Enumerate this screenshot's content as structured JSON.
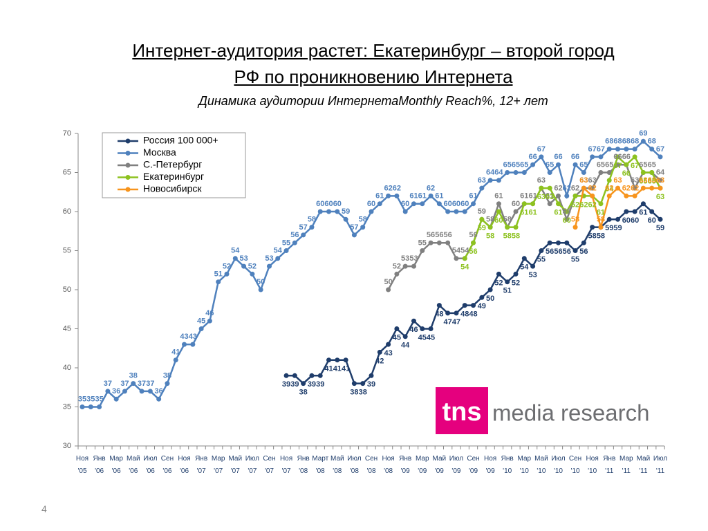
{
  "slide": {
    "title": [
      "Интернет-аудитория растет: Екатеринбург – второй город",
      "РФ по проникновению Интернета"
    ],
    "subtitle": "Динамика аудитории ИнтернетаMonthly Reach%, 12+ лет",
    "logo": {
      "brand": "tns",
      "text": "media research"
    },
    "page_number": "4"
  },
  "chart_data": {
    "type": "line",
    "categories": [
      "Ноя '05",
      null,
      "Янв '06",
      null,
      "Мар '06",
      null,
      "Май '06",
      null,
      "Июл '06",
      null,
      "Сен '06",
      null,
      "Ноя '06",
      null,
      "Янв '07",
      null,
      "Мар '07",
      null,
      "Май '07",
      null,
      "Июл '07",
      null,
      "Сен '07",
      null,
      "Ноя '07",
      null,
      "Янв '08",
      null,
      "Март '08",
      null,
      "Май '08",
      null,
      "Июл '08",
      null,
      "Сен '08",
      null,
      "Ноя '08",
      null,
      "Янв '09",
      null,
      "Мар '09",
      null,
      "Май '09",
      null,
      "Июл '09",
      null,
      "Сен '09",
      null,
      "Ноя '09",
      null,
      "Янв '10",
      null,
      "Мар '10",
      null,
      "Май '10",
      null,
      "Июл '10",
      null,
      "Сен '10",
      null,
      "Ноя '10",
      null,
      "Янв '11",
      null,
      "Мар '11",
      null,
      "Май '11",
      null,
      "Июл '11"
    ],
    "series": [
      {
        "name": "Россия 100 000+",
        "color": "#1f3d6b",
        "values": [
          null,
          null,
          null,
          null,
          null,
          null,
          null,
          null,
          null,
          null,
          null,
          null,
          null,
          null,
          null,
          null,
          null,
          null,
          null,
          null,
          null,
          null,
          null,
          null,
          39,
          39,
          38,
          39,
          39,
          41,
          41,
          41,
          38,
          38,
          39,
          42,
          43,
          45,
          44,
          46,
          45,
          45,
          48,
          47,
          47,
          48,
          48,
          49,
          50,
          52,
          51,
          52,
          54,
          53,
          55,
          56,
          56,
          56,
          55,
          56,
          58,
          58,
          59,
          59,
          60,
          60,
          61,
          60,
          59
        ]
      },
      {
        "name": "Москва",
        "color": "#4f81bd",
        "values": [
          35,
          35,
          35,
          37,
          36,
          37,
          38,
          37,
          37,
          36,
          38,
          41,
          43,
          43,
          45,
          46,
          51,
          52,
          54,
          53,
          52,
          50,
          53,
          54,
          55,
          56,
          57,
          58,
          60,
          60,
          60,
          59,
          57,
          58,
          60,
          61,
          62,
          62,
          60,
          61,
          61,
          62,
          61,
          60,
          60,
          60,
          61,
          63,
          64,
          64,
          65,
          65,
          65,
          66,
          67,
          65,
          66,
          62,
          66,
          65,
          67,
          67,
          68,
          68,
          68,
          68,
          69,
          68,
          67
        ]
      },
      {
        "name": "С.-Петербург",
        "color": "#808080",
        "values": [
          null,
          null,
          null,
          null,
          null,
          null,
          null,
          null,
          null,
          null,
          null,
          null,
          null,
          null,
          null,
          null,
          null,
          null,
          null,
          null,
          null,
          null,
          null,
          null,
          null,
          null,
          null,
          null,
          null,
          null,
          null,
          null,
          null,
          null,
          null,
          null,
          50,
          52,
          53,
          53,
          55,
          56,
          56,
          56,
          54,
          54,
          56,
          59,
          58,
          61,
          58,
          60,
          61,
          61,
          63,
          61,
          62,
          59,
          62,
          63,
          63,
          65,
          65,
          66,
          66,
          63,
          65,
          65,
          64
        ]
      },
      {
        "name": "Екатеринбург",
        "color": "#8dc21f",
        "values": [
          null,
          null,
          null,
          null,
          null,
          null,
          null,
          null,
          null,
          null,
          null,
          null,
          null,
          null,
          null,
          null,
          null,
          null,
          null,
          null,
          null,
          null,
          null,
          null,
          null,
          null,
          null,
          null,
          null,
          null,
          null,
          null,
          null,
          null,
          null,
          null,
          null,
          null,
          null,
          null,
          null,
          null,
          null,
          null,
          null,
          54,
          56,
          59,
          58,
          60,
          58,
          58,
          61,
          61,
          63,
          63,
          61,
          60,
          62,
          62,
          62,
          61,
          64,
          67,
          66,
          67,
          65,
          65,
          63
        ]
      },
      {
        "name": "Новосибирск",
        "color": "#f7941d",
        "values": [
          null,
          null,
          null,
          null,
          null,
          null,
          null,
          null,
          null,
          null,
          null,
          null,
          null,
          null,
          null,
          null,
          null,
          null,
          null,
          null,
          null,
          null,
          null,
          null,
          null,
          null,
          null,
          null,
          null,
          null,
          null,
          null,
          null,
          null,
          null,
          null,
          null,
          null,
          null,
          null,
          null,
          null,
          null,
          null,
          null,
          null,
          null,
          null,
          null,
          null,
          null,
          null,
          null,
          null,
          null,
          null,
          null,
          null,
          58,
          63,
          62,
          58,
          62,
          63,
          62,
          62,
          63,
          63,
          63
        ]
      }
    ],
    "ylim": [
      30,
      70
    ],
    "yticks": [
      30,
      35,
      40,
      45,
      50,
      55,
      60,
      65,
      70
    ],
    "grid": false,
    "legend": "top-left"
  }
}
